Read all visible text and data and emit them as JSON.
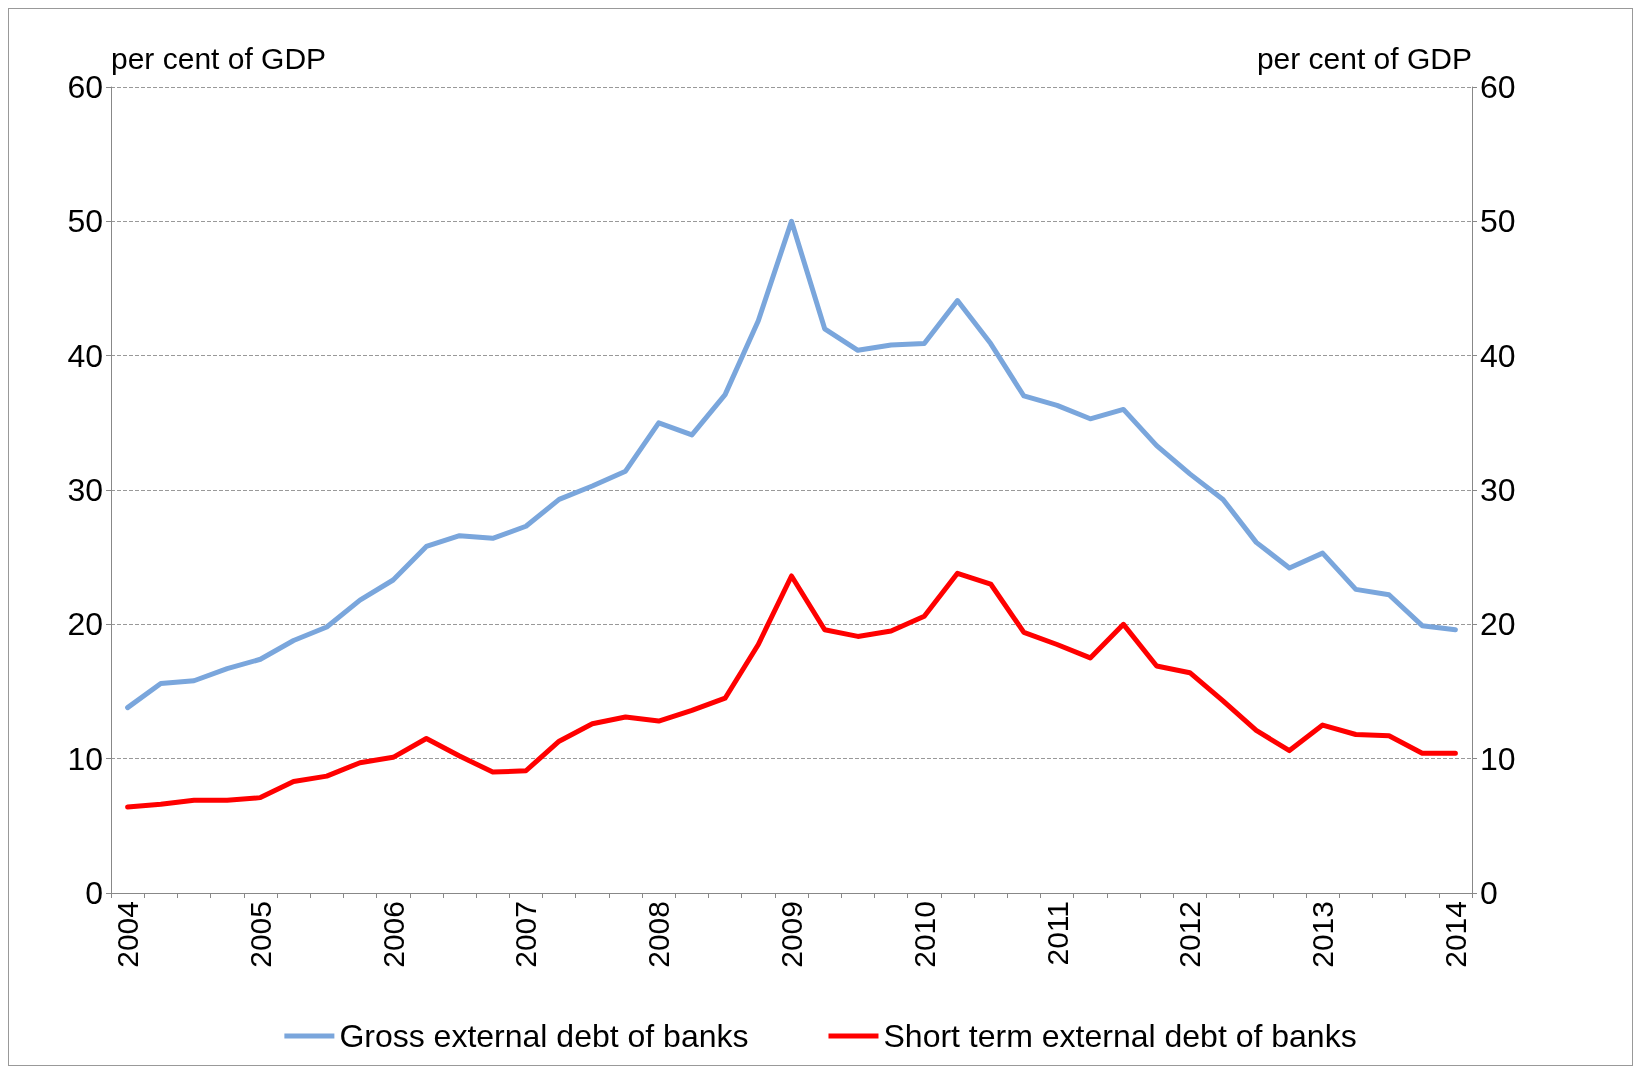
{
  "chart_data": {
    "type": "line",
    "ylabel": "per cent of GDP",
    "y2label": "per cent of GDP",
    "categories": [
      "2004",
      null,
      null,
      null,
      "2005",
      null,
      null,
      null,
      "2006",
      null,
      null,
      null,
      "2007",
      null,
      null,
      null,
      "2008",
      null,
      null,
      null,
      "2009",
      null,
      null,
      null,
      "2010",
      null,
      null,
      null,
      "2011",
      null,
      null,
      null,
      "2012",
      null,
      null,
      null,
      "2013",
      null,
      null,
      null,
      "2014"
    ],
    "series": [
      {
        "name": "Gross external debt of banks",
        "color": "#7aa6dc",
        "values": [
          13.8,
          15.6,
          15.8,
          16.7,
          17.4,
          18.8,
          19.8,
          21.8,
          23.3,
          25.8,
          26.6,
          26.4,
          27.3,
          29.3,
          30.3,
          31.4,
          35.0,
          34.1,
          37.1,
          42.6,
          50.0,
          42.0,
          40.4,
          40.8,
          40.9,
          44.1,
          40.9,
          37.0,
          36.3,
          35.3,
          36.0,
          33.3,
          31.2,
          29.3,
          26.1,
          24.2,
          25.3,
          22.6,
          22.2,
          19.9,
          19.6
        ]
      },
      {
        "name": "Short term external debt of banks",
        "color": "#ff0000",
        "values": [
          6.4,
          6.6,
          6.9,
          6.9,
          7.1,
          8.3,
          8.7,
          9.7,
          10.1,
          11.5,
          10.2,
          9.0,
          9.1,
          11.3,
          12.6,
          13.1,
          12.8,
          13.6,
          14.5,
          18.5,
          23.6,
          19.6,
          19.1,
          19.5,
          20.6,
          23.8,
          23.0,
          19.4,
          18.5,
          17.5,
          20.0,
          16.9,
          16.4,
          14.3,
          12.1,
          10.6,
          12.5,
          11.8,
          11.7,
          10.4,
          10.4
        ]
      }
    ],
    "ylim": [
      0,
      60
    ],
    "yticks": [
      0,
      10,
      20,
      30,
      40,
      50,
      60
    ],
    "y2lim": [
      0,
      60
    ],
    "y2ticks": [
      0,
      10,
      20,
      30,
      40,
      50,
      60
    ],
    "grid": "y",
    "legend": "bottom",
    "marker": "none",
    "line_style": "solid"
  }
}
